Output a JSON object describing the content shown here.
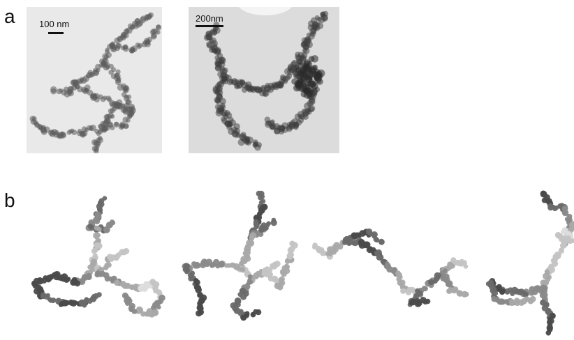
{
  "figure": {
    "panel_a": {
      "label": "a",
      "images": [
        {
          "scale_label": "100 nm",
          "background": "#e9e9e9",
          "particle_color": "#5d5d5d"
        },
        {
          "scale_label": "200nm",
          "background": "#dcdcdc",
          "particle_color": "#3e3e3e"
        }
      ]
    },
    "panel_b": {
      "label": "b",
      "aggregate_count": 4,
      "shades": [
        "#4a4a4a",
        "#6a6a6a",
        "#8a8a8a",
        "#a9a9a9",
        "#c4c4c4",
        "#dcdcdc"
      ]
    }
  }
}
